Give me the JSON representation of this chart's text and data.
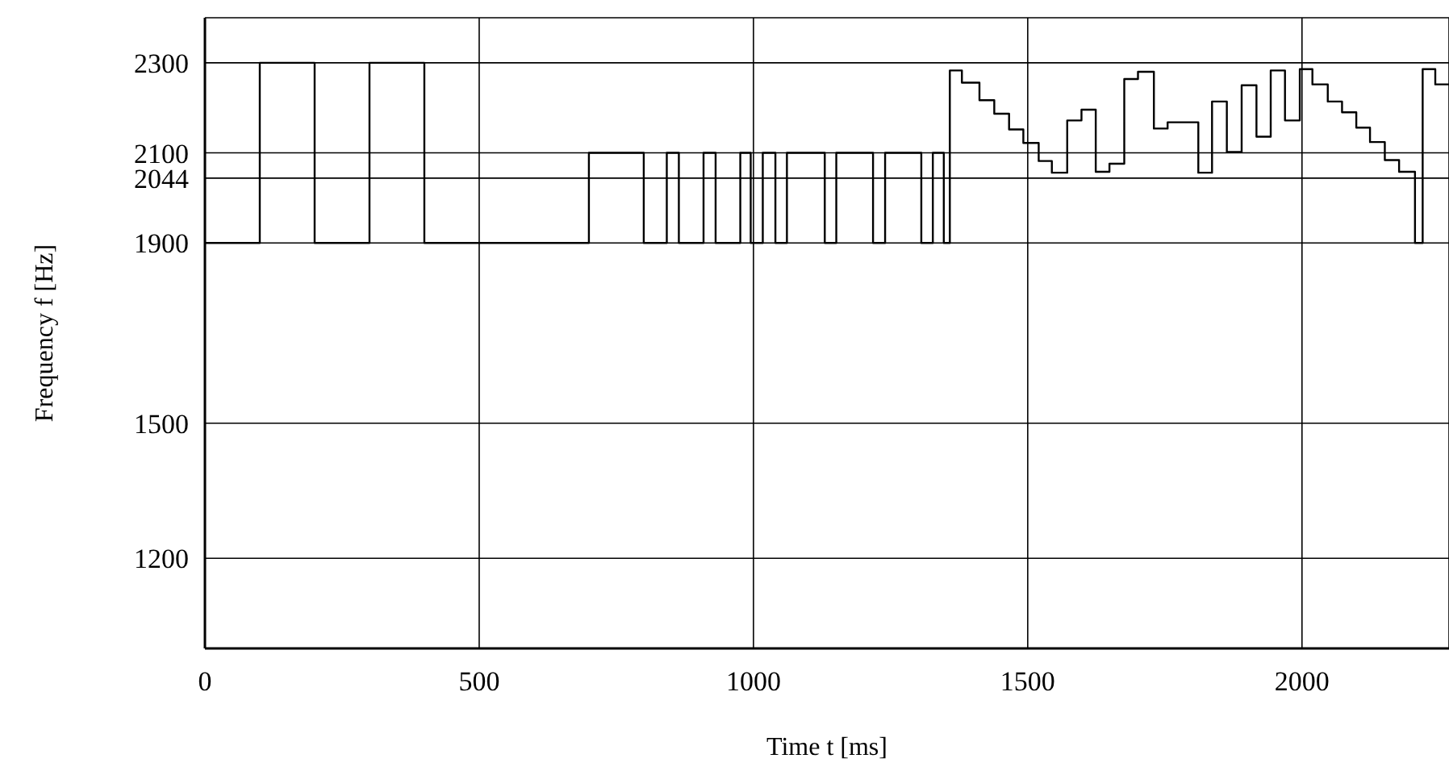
{
  "chart_data": {
    "type": "step",
    "xlabel": "Time t [ms]",
    "ylabel": "Frequency f [Hz]",
    "x": [
      0,
      100,
      200,
      300,
      400,
      700,
      800,
      842,
      864,
      909,
      931,
      976,
      995,
      1017,
      1040,
      1061,
      1130,
      1151,
      1218,
      1240,
      1306,
      1327,
      1347,
      1358,
      1380,
      1412,
      1439,
      1466,
      1492,
      1520,
      1544,
      1572,
      1598,
      1624,
      1649,
      1676,
      1701,
      1730,
      1755,
      1811,
      1836,
      1863,
      1890,
      1917,
      1943,
      1969,
      1996,
      2019,
      2047,
      2073,
      2099,
      2124,
      2151,
      2177,
      2206,
      2220,
      2243,
      2268
    ],
    "series": [
      {
        "color": "#000000",
        "values": [
          1900,
          2300,
          1900,
          2300,
          1900,
          2100,
          1900,
          2100,
          1900,
          2100,
          1900,
          2100,
          1900,
          2100,
          1900,
          2100,
          1900,
          2100,
          1900,
          2100,
          1900,
          2100,
          1900,
          2283,
          2256,
          2217,
          2187,
          2152,
          2122,
          2082,
          2056,
          2172,
          2196,
          2058,
          2076,
          2264,
          2280,
          2154,
          2168,
          2056,
          2214,
          2102,
          2250,
          2136,
          2283,
          2172,
          2286,
          2252,
          2214,
          2190,
          2156,
          2124,
          2084,
          2058,
          1900,
          2286,
          2252,
          2252
        ]
      }
    ],
    "xlim": [
      0,
      2268
    ],
    "ylim": [
      1000,
      2400
    ],
    "xticks": [
      0,
      500,
      1000,
      1500,
      2000
    ],
    "yticks": [
      1200,
      1500,
      1900,
      2044,
      2100,
      2300
    ],
    "grid": true,
    "legend": false
  }
}
